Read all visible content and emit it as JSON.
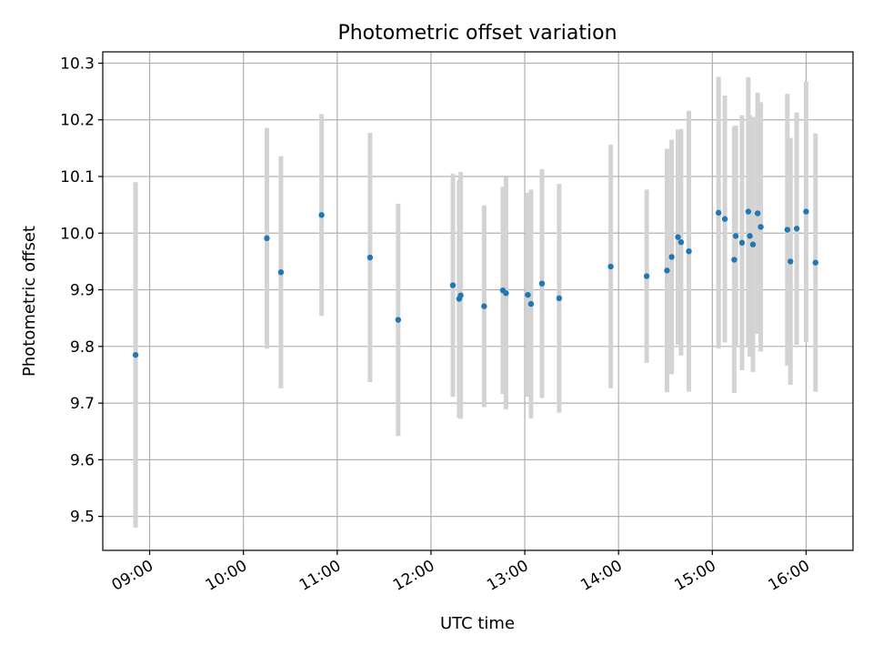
{
  "chart_data": {
    "type": "scatter",
    "title": "Photometric offset variation",
    "xlabel": "UTC time",
    "ylabel": "Photometric offset",
    "grid": true,
    "xlim": [
      "08:30",
      "16:30"
    ],
    "ylim": [
      9.44,
      10.32
    ],
    "x_ticks": [
      "09:00",
      "10:00",
      "11:00",
      "12:00",
      "13:00",
      "14:00",
      "15:00",
      "16:00"
    ],
    "y_ticks": [
      9.5,
      9.6,
      9.7,
      9.8,
      9.9,
      10.0,
      10.1,
      10.2,
      10.3
    ],
    "y_tick_labels": [
      "9.5",
      "9.6",
      "9.7",
      "9.8",
      "9.9",
      "10.0",
      "10.1",
      "10.2",
      "10.3"
    ],
    "colors": {
      "points": "#1f77b4",
      "errorbars": "#d3d3d3",
      "grid": "#b0b0b0"
    },
    "series": [
      {
        "marker": "point with vertical error bar",
        "points": [
          {
            "x": "08:51",
            "y": 9.785,
            "err": 0.305
          },
          {
            "x": "10:15",
            "y": 9.991,
            "err": 0.195
          },
          {
            "x": "10:24",
            "y": 9.931,
            "err": 0.205
          },
          {
            "x": "10:50",
            "y": 10.032,
            "err": 0.178
          },
          {
            "x": "11:21",
            "y": 9.957,
            "err": 0.22
          },
          {
            "x": "11:39",
            "y": 9.847,
            "err": 0.205
          },
          {
            "x": "12:14",
            "y": 9.908,
            "err": 0.197
          },
          {
            "x": "12:18",
            "y": 9.884,
            "err": 0.21
          },
          {
            "x": "12:19",
            "y": 9.89,
            "err": 0.218
          },
          {
            "x": "12:34",
            "y": 9.871,
            "err": 0.178
          },
          {
            "x": "12:46",
            "y": 9.899,
            "err": 0.183
          },
          {
            "x": "12:48",
            "y": 9.894,
            "err": 0.205
          },
          {
            "x": "13:02",
            "y": 9.891,
            "err": 0.18
          },
          {
            "x": "13:04",
            "y": 9.875,
            "err": 0.202
          },
          {
            "x": "13:11",
            "y": 9.911,
            "err": 0.202
          },
          {
            "x": "13:22",
            "y": 9.885,
            "err": 0.202
          },
          {
            "x": "13:55",
            "y": 9.941,
            "err": 0.215
          },
          {
            "x": "14:18",
            "y": 9.924,
            "err": 0.153
          },
          {
            "x": "14:31",
            "y": 9.934,
            "err": 0.215
          },
          {
            "x": "14:34",
            "y": 9.958,
            "err": 0.207
          },
          {
            "x": "14:38",
            "y": 9.993,
            "err": 0.19
          },
          {
            "x": "14:40",
            "y": 9.984,
            "err": 0.2
          },
          {
            "x": "14:45",
            "y": 9.968,
            "err": 0.248
          },
          {
            "x": "15:04",
            "y": 10.036,
            "err": 0.24
          },
          {
            "x": "15:08",
            "y": 10.025,
            "err": 0.218
          },
          {
            "x": "15:14",
            "y": 9.953,
            "err": 0.235
          },
          {
            "x": "15:15",
            "y": 9.995,
            "err": 0.195
          },
          {
            "x": "15:19",
            "y": 9.983,
            "err": 0.225
          },
          {
            "x": "15:23",
            "y": 10.038,
            "err": 0.237
          },
          {
            "x": "15:24",
            "y": 9.995,
            "err": 0.213
          },
          {
            "x": "15:26",
            "y": 9.98,
            "err": 0.225
          },
          {
            "x": "15:29",
            "y": 10.035,
            "err": 0.213
          },
          {
            "x": "15:31",
            "y": 10.011,
            "err": 0.22
          },
          {
            "x": "15:48",
            "y": 10.006,
            "err": 0.24
          },
          {
            "x": "15:50",
            "y": 9.95,
            "err": 0.218
          },
          {
            "x": "15:54",
            "y": 10.008,
            "err": 0.205
          },
          {
            "x": "16:00",
            "y": 10.038,
            "err": 0.23
          },
          {
            "x": "16:06",
            "y": 9.948,
            "err": 0.228
          }
        ]
      }
    ]
  }
}
